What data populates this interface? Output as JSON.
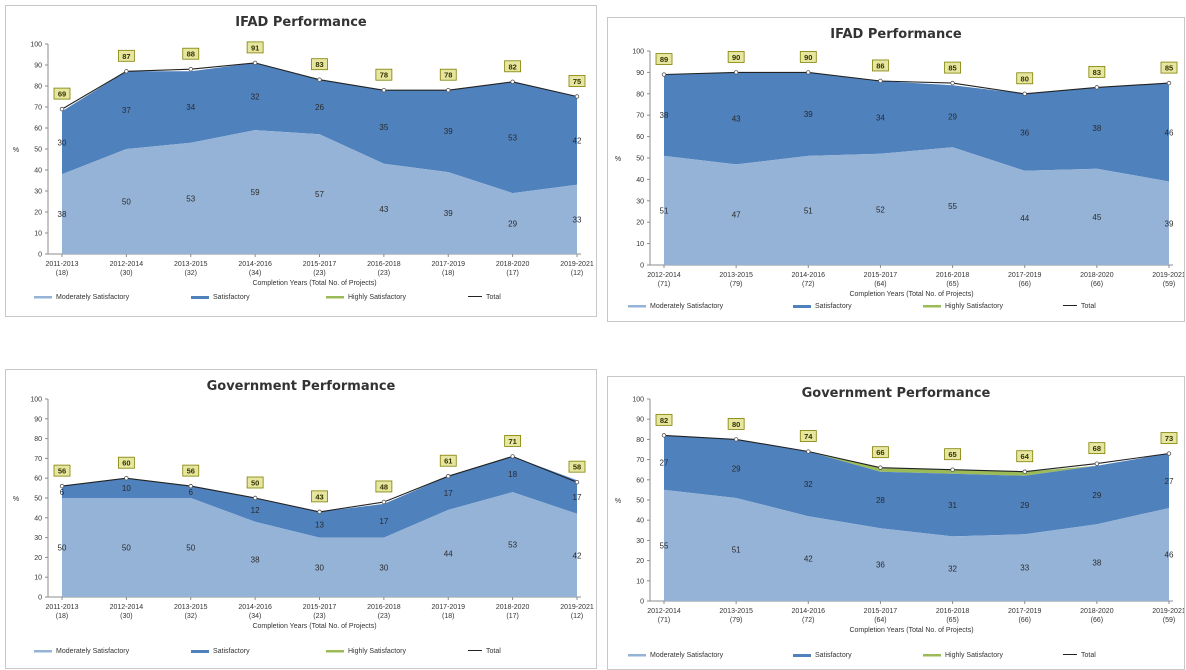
{
  "colors": {
    "moderately": "#95b3d7",
    "satisfactory": "#4f81bd",
    "highly": "#9bbb59",
    "total": "#222222",
    "label_box": "#e6e6a0",
    "label_border": "#7f7f00"
  },
  "chart_data": [
    {
      "type": "area",
      "title": "IFAD Performance",
      "xlabel": "Completion Years (Total No. of Projects)",
      "ylabel": "%",
      "ylim": [
        0,
        100
      ],
      "yticks": [
        "0",
        "10",
        "20",
        "30",
        "40",
        "50",
        "60",
        "70",
        "80",
        "90",
        "100"
      ],
      "categories": [
        [
          "2011-2013",
          "(18)"
        ],
        [
          "2012-2014",
          "(30)"
        ],
        [
          "2013-2015",
          "(32)"
        ],
        [
          "2014-2016",
          "(34)"
        ],
        [
          "2015-2017",
          "(23)"
        ],
        [
          "2016-2018",
          "(23)"
        ],
        [
          "2017-2019",
          "(18)"
        ],
        [
          "2018-2020",
          "(17)"
        ],
        [
          "2019-2021",
          "(12)"
        ]
      ],
      "series": [
        {
          "name": "Moderately Satisfactory",
          "values": [
            38,
            50,
            53,
            59,
            57,
            43,
            39,
            29,
            33
          ]
        },
        {
          "name": "Satisfactory",
          "values": [
            30,
            37,
            34,
            32,
            26,
            35,
            39,
            53,
            42
          ]
        },
        {
          "name": "Highly Satisfactory",
          "values": [
            0,
            0,
            0,
            0,
            0,
            0,
            0,
            0,
            0
          ]
        },
        {
          "name": "Total",
          "values": [
            69,
            87,
            88,
            91,
            83,
            78,
            78,
            82,
            75
          ]
        }
      ],
      "series_labels": [
        [
          "38",
          "50",
          "53",
          "59",
          "57",
          "43",
          "39",
          "29",
          "33"
        ],
        [
          "30",
          "37",
          "34",
          "32",
          "26",
          "35",
          "39",
          "53",
          "42"
        ]
      ],
      "total_labels": [
        "69",
        "87",
        "88",
        "91",
        "83",
        "78",
        "78",
        "82",
        "75"
      ],
      "legend": [
        "Moderately Satisfactory",
        "Satisfactory",
        "Highly Satisfactory",
        "Total"
      ],
      "legend_position": "bottom",
      "grid": false
    },
    {
      "type": "area",
      "title": "IFAD Performance",
      "xlabel": "Completion Years (Total No. of Projects)",
      "ylabel": "%",
      "ylim": [
        0,
        100
      ],
      "yticks": [
        "0",
        "10",
        "20",
        "30",
        "40",
        "50",
        "60",
        "70",
        "80",
        "90",
        "100"
      ],
      "categories": [
        [
          "2012-2014",
          "(71)"
        ],
        [
          "2013-2015",
          "(79)"
        ],
        [
          "2014-2016",
          "(72)"
        ],
        [
          "2015-2017",
          "(64)"
        ],
        [
          "2016-2018",
          "(65)"
        ],
        [
          "2017-2019",
          "(66)"
        ],
        [
          "2018-2020",
          "(66)"
        ],
        [
          "2019-2021",
          "(59)"
        ]
      ],
      "series": [
        {
          "name": "Moderately Satisfactory",
          "values": [
            51,
            47,
            51,
            52,
            55,
            44,
            45,
            39
          ]
        },
        {
          "name": "Satisfactory",
          "values": [
            38,
            43,
            39,
            34,
            29,
            36,
            38,
            46
          ]
        },
        {
          "name": "Highly Satisfactory",
          "values": [
            0,
            0,
            0,
            0,
            0,
            0,
            0,
            0
          ]
        },
        {
          "name": "Total",
          "values": [
            89,
            90,
            90,
            86,
            85,
            80,
            83,
            85
          ]
        }
      ],
      "series_labels": [
        [
          "51",
          "47",
          "51",
          "52",
          "55",
          "44",
          "45",
          "39"
        ],
        [
          "38",
          "43",
          "39",
          "34",
          "29",
          "36",
          "38",
          "46"
        ]
      ],
      "total_labels": [
        "89",
        "90",
        "90",
        "86",
        "85",
        "80",
        "83",
        "85"
      ],
      "legend": [
        "Moderately Satisfactory",
        "Satisfactory",
        "Highly Satisfactory",
        "Total"
      ],
      "legend_position": "bottom",
      "grid": false
    },
    {
      "type": "area",
      "title": "Government Performance",
      "xlabel": "Completion Years (Total No. of Projects)",
      "ylabel": "%",
      "ylim": [
        0,
        100
      ],
      "yticks": [
        "0",
        "10",
        "20",
        "30",
        "40",
        "50",
        "60",
        "70",
        "80",
        "90",
        "100"
      ],
      "categories": [
        [
          "2011-2013",
          "(18)"
        ],
        [
          "2012-2014",
          "(30)"
        ],
        [
          "2013-2015",
          "(32)"
        ],
        [
          "2014-2016",
          "(34)"
        ],
        [
          "2015-2017",
          "(23)"
        ],
        [
          "2016-2018",
          "(23)"
        ],
        [
          "2017-2019",
          "(18)"
        ],
        [
          "2018-2020",
          "(17)"
        ],
        [
          "2019-2021",
          "(12)"
        ]
      ],
      "series": [
        {
          "name": "Moderately Satisfactory",
          "values": [
            50,
            50,
            50,
            38,
            30,
            30,
            44,
            53,
            42
          ]
        },
        {
          "name": "Satisfactory",
          "values": [
            6,
            10,
            6,
            12,
            13,
            17,
            17,
            18,
            17
          ]
        },
        {
          "name": "Highly Satisfactory",
          "values": [
            0,
            0,
            0,
            0,
            0,
            0,
            0,
            0,
            0
          ]
        },
        {
          "name": "Total",
          "values": [
            56,
            60,
            56,
            50,
            43,
            48,
            61,
            71,
            58
          ]
        }
      ],
      "series_labels": [
        [
          "50",
          "50",
          "50",
          "38",
          "30",
          "30",
          "44",
          "53",
          "42"
        ],
        [
          "6",
          "10",
          "6",
          "12",
          "13",
          "17",
          "17",
          "18",
          "17"
        ]
      ],
      "total_labels": [
        "56",
        "60",
        "56",
        "50",
        "43",
        "48",
        "61",
        "71",
        "58"
      ],
      "legend": [
        "Moderately Satisfactory",
        "Satisfactory",
        "Highly Satisfactory",
        "Total"
      ],
      "legend_position": "bottom",
      "grid": false
    },
    {
      "type": "area",
      "title": "Government Performance",
      "xlabel": "Completion Years (Total No. of Projects)",
      "ylabel": "%",
      "ylim": [
        0,
        100
      ],
      "yticks": [
        "0",
        "10",
        "20",
        "30",
        "40",
        "50",
        "60",
        "70",
        "80",
        "90",
        "100"
      ],
      "categories": [
        [
          "2012-2014",
          "(71)"
        ],
        [
          "2013-2015",
          "(79)"
        ],
        [
          "2014-2016",
          "(72)"
        ],
        [
          "2015-2017",
          "(64)"
        ],
        [
          "2016-2018",
          "(65)"
        ],
        [
          "2017-2019",
          "(66)"
        ],
        [
          "2018-2020",
          "(66)"
        ],
        [
          "2019-2021",
          "(59)"
        ]
      ],
      "series": [
        {
          "name": "Moderately Satisfactory",
          "values": [
            55,
            51,
            42,
            36,
            32,
            33,
            38,
            46
          ]
        },
        {
          "name": "Satisfactory",
          "values": [
            27,
            29,
            32,
            28,
            31,
            29,
            29,
            27
          ]
        },
        {
          "name": "Highly Satisfactory",
          "values": [
            0,
            0,
            0,
            2,
            2,
            2,
            0,
            0
          ]
        },
        {
          "name": "Total",
          "values": [
            82,
            80,
            74,
            66,
            65,
            64,
            68,
            73
          ]
        }
      ],
      "series_labels": [
        [
          "55",
          "51",
          "42",
          "36",
          "32",
          "33",
          "38",
          "46"
        ],
        [
          "27",
          "29",
          "32",
          "28",
          "31",
          "29",
          "29",
          "27"
        ]
      ],
      "total_labels": [
        "82",
        "80",
        "74",
        "66",
        "65",
        "64",
        "68",
        "73"
      ],
      "legend": [
        "Moderately Satisfactory",
        "Satisfactory",
        "Highly Satisfactory",
        "Total"
      ],
      "legend_position": "bottom",
      "grid": false
    }
  ]
}
